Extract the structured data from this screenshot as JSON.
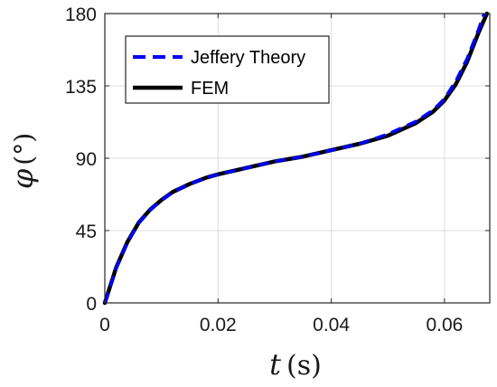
{
  "chart_data": {
    "type": "line",
    "xlabel_symbol": "t",
    "xlabel_unit": "(s)",
    "ylabel_symbol": "φ",
    "ylabel_unit": "(°)",
    "xlim": [
      0,
      0.068
    ],
    "ylim": [
      0,
      180
    ],
    "xticks": [
      0,
      0.02,
      0.04,
      0.06
    ],
    "xtick_labels": [
      "0",
      "0.02",
      "0.04",
      "0.06"
    ],
    "yticks": [
      0,
      45,
      90,
      135,
      180
    ],
    "ytick_labels": [
      "0",
      "45",
      "90",
      "135",
      "180"
    ],
    "grid": true,
    "legend_position": "top-left",
    "series": [
      {
        "name": "Jeffery Theory",
        "color": "#0000ff",
        "style": "dashed",
        "x": [
          0,
          0.002,
          0.004,
          0.006,
          0.008,
          0.01,
          0.012,
          0.015,
          0.018,
          0.02,
          0.025,
          0.03,
          0.035,
          0.04,
          0.045,
          0.05,
          0.055,
          0.058,
          0.06,
          0.062,
          0.064,
          0.066,
          0.067
        ],
        "y": [
          0,
          22,
          38,
          50,
          58,
          64,
          69,
          74,
          78,
          80,
          84,
          88,
          91,
          95,
          99,
          105,
          113,
          120,
          127,
          138,
          152,
          170,
          180
        ]
      },
      {
        "name": "FEM",
        "color": "#000000",
        "style": "solid",
        "x": [
          0,
          0.002,
          0.004,
          0.006,
          0.008,
          0.01,
          0.012,
          0.015,
          0.018,
          0.02,
          0.025,
          0.03,
          0.035,
          0.04,
          0.045,
          0.05,
          0.055,
          0.058,
          0.06,
          0.062,
          0.064,
          0.066,
          0.0675
        ],
        "y": [
          0,
          22,
          38,
          50,
          58,
          64,
          69,
          74,
          78,
          80,
          84,
          88,
          91,
          95,
          99,
          104,
          112,
          119,
          126,
          136,
          150,
          168,
          180
        ]
      }
    ]
  }
}
